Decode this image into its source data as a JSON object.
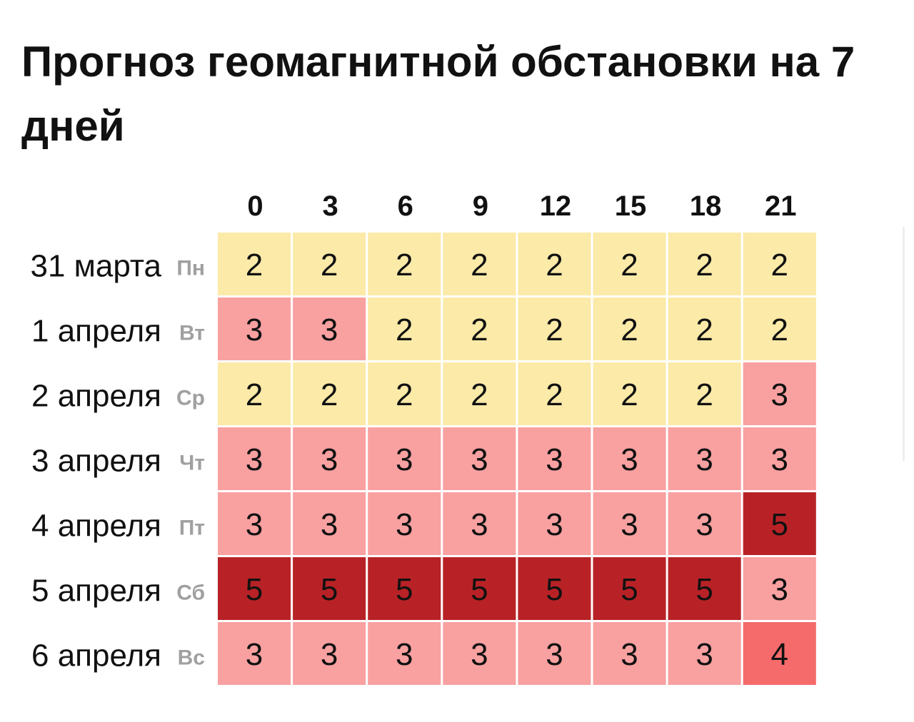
{
  "title": "Прогноз геомагнитной обстановки на 7 дней",
  "chart_data": {
    "type": "heatmap",
    "title": "Прогноз геомагнитной обстановки на 7 дней",
    "x_labels": [
      "0",
      "3",
      "6",
      "9",
      "12",
      "15",
      "18",
      "21"
    ],
    "rows": [
      {
        "date": "31 марта",
        "weekday": "Пн",
        "values": [
          2,
          2,
          2,
          2,
          2,
          2,
          2,
          2
        ]
      },
      {
        "date": "1 апреля",
        "weekday": "Вт",
        "values": [
          3,
          3,
          2,
          2,
          2,
          2,
          2,
          2
        ]
      },
      {
        "date": "2 апреля",
        "weekday": "Ср",
        "values": [
          2,
          2,
          2,
          2,
          2,
          2,
          2,
          3
        ]
      },
      {
        "date": "3 апреля",
        "weekday": "Чт",
        "values": [
          3,
          3,
          3,
          3,
          3,
          3,
          3,
          3
        ]
      },
      {
        "date": "4 апреля",
        "weekday": "Пт",
        "values": [
          3,
          3,
          3,
          3,
          3,
          3,
          3,
          5
        ]
      },
      {
        "date": "5 апреля",
        "weekday": "Сб",
        "values": [
          5,
          5,
          5,
          5,
          5,
          5,
          5,
          3
        ]
      },
      {
        "date": "6 апреля",
        "weekday": "Вс",
        "values": [
          3,
          3,
          3,
          3,
          3,
          3,
          3,
          4
        ]
      }
    ],
    "color_scale": {
      "2": "#fbeaa8",
      "3": "#f9a0a0",
      "4": "#f56b6b",
      "5": "#b82226"
    },
    "text_colors": {
      "default": "#111111"
    },
    "legend": "none"
  }
}
